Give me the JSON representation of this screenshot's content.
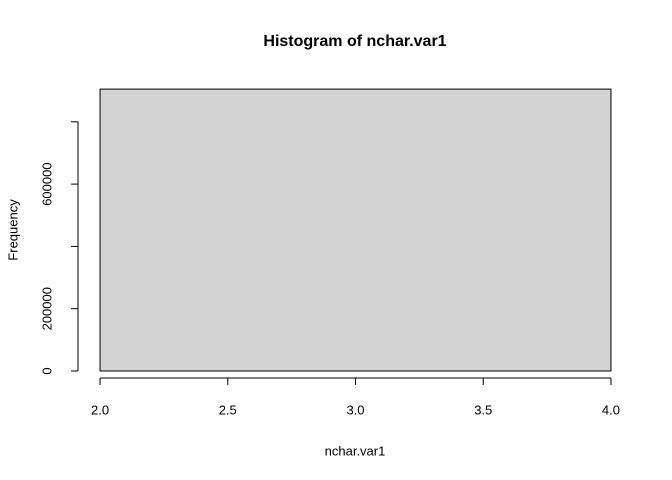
{
  "chart_data": {
    "type": "histogram",
    "title": "Histogram of nchar.var1",
    "xlabel": "nchar.var1",
    "ylabel": "Frequency",
    "bins": [
      2,
      4
    ],
    "values": [
      905000
    ],
    "color": "#d3d3d3",
    "xlim": [
      1.92,
      4.08
    ],
    "xticks": [
      {
        "value": 2,
        "label": "2.0"
      },
      {
        "value": 2.5,
        "label": "2.5"
      },
      {
        "value": 3,
        "label": "3.0"
      },
      {
        "value": 3.5,
        "label": "3.5"
      },
      {
        "value": 4,
        "label": "4.0"
      }
    ],
    "ylim": [
      0,
      940000
    ],
    "yticks": [
      0,
      200000,
      {
        "value": 400000,
        "label": null
      },
      600000,
      {
        "value": 800000,
        "label": null
      }
    ]
  }
}
